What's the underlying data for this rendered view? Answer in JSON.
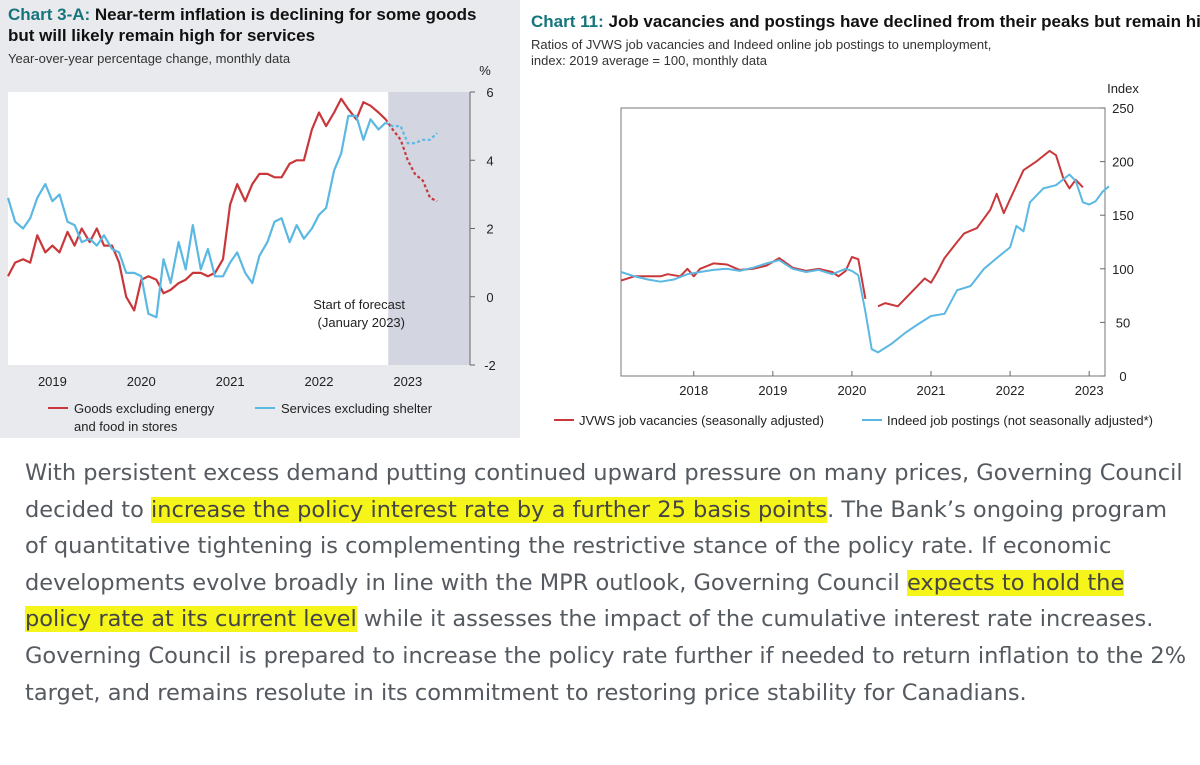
{
  "chart_data": [
    {
      "type": "line",
      "title_number": "Chart 3-A:",
      "title": "Near-term inflation is declining for some goods but will likely remain high for services",
      "subtitle": "Year-over-year percentage change, monthly data",
      "y_unit": "%",
      "ylim": [
        -2,
        6
      ],
      "y_ticks": [
        -2,
        0,
        2,
        4,
        6
      ],
      "xlim": [
        2018.5,
        2023.7
      ],
      "x_ticks": [
        {
          "label": "2019",
          "x": 2019.0
        },
        {
          "label": "2020",
          "x": 2020.0
        },
        {
          "label": "2021",
          "x": 2021.0
        },
        {
          "label": "2022",
          "x": 2022.0
        },
        {
          "label": "2023",
          "x": 2023.0
        }
      ],
      "forecast_start": 2022.78,
      "annotation": [
        "Start of forecast",
        "(January 2023)"
      ],
      "series": [
        {
          "name": "Goods excluding energy and food in stores",
          "legend_lines": [
            "Goods excluding energy",
            "and food in stores"
          ],
          "color": "#c8383b",
          "points": [
            [
              2018.5,
              0.6
            ],
            [
              2018.58,
              1.0
            ],
            [
              2018.67,
              1.1
            ],
            [
              2018.75,
              1.0
            ],
            [
              2018.83,
              1.8
            ],
            [
              2018.92,
              1.3
            ],
            [
              2019.0,
              1.5
            ],
            [
              2019.08,
              1.3
            ],
            [
              2019.17,
              1.9
            ],
            [
              2019.25,
              1.5
            ],
            [
              2019.33,
              2.0
            ],
            [
              2019.42,
              1.6
            ],
            [
              2019.5,
              2.0
            ],
            [
              2019.58,
              1.5
            ],
            [
              2019.67,
              1.5
            ],
            [
              2019.75,
              1.0
            ],
            [
              2019.83,
              0.0
            ],
            [
              2019.92,
              -0.4
            ],
            [
              2020.0,
              0.5
            ],
            [
              2020.08,
              0.6
            ],
            [
              2020.17,
              0.5
            ],
            [
              2020.25,
              0.1
            ],
            [
              2020.33,
              0.2
            ],
            [
              2020.42,
              0.4
            ],
            [
              2020.5,
              0.5
            ],
            [
              2020.58,
              0.7
            ],
            [
              2020.67,
              0.7
            ],
            [
              2020.75,
              0.6
            ],
            [
              2020.83,
              0.7
            ],
            [
              2020.92,
              1.1
            ],
            [
              2021.0,
              2.7
            ],
            [
              2021.08,
              3.3
            ],
            [
              2021.17,
              2.8
            ],
            [
              2021.25,
              3.3
            ],
            [
              2021.33,
              3.6
            ],
            [
              2021.42,
              3.6
            ],
            [
              2021.5,
              3.5
            ],
            [
              2021.58,
              3.5
            ],
            [
              2021.67,
              3.9
            ],
            [
              2021.75,
              4.0
            ],
            [
              2021.83,
              4.0
            ],
            [
              2021.92,
              4.9
            ],
            [
              2022.0,
              5.4
            ],
            [
              2022.08,
              5.0
            ],
            [
              2022.17,
              5.4
            ],
            [
              2022.25,
              5.8
            ],
            [
              2022.33,
              5.5
            ],
            [
              2022.42,
              5.2
            ],
            [
              2022.5,
              5.7
            ],
            [
              2022.58,
              5.6
            ],
            [
              2022.67,
              5.4
            ],
            [
              2022.75,
              5.2
            ]
          ],
          "forecast_points": [
            [
              2022.75,
              5.2
            ],
            [
              2022.83,
              4.9
            ],
            [
              2022.92,
              4.6
            ],
            [
              2023.0,
              4.0
            ],
            [
              2023.08,
              3.6
            ],
            [
              2023.17,
              3.4
            ],
            [
              2023.25,
              2.9
            ],
            [
              2023.33,
              2.8
            ]
          ]
        },
        {
          "name": "Services excluding shelter",
          "legend_lines": [
            "Services excluding shelter"
          ],
          "color": "#5bb8e3",
          "points": [
            [
              2018.5,
              2.9
            ],
            [
              2018.58,
              2.2
            ],
            [
              2018.67,
              2.0
            ],
            [
              2018.75,
              2.3
            ],
            [
              2018.83,
              2.9
            ],
            [
              2018.92,
              3.3
            ],
            [
              2019.0,
              2.8
            ],
            [
              2019.08,
              3.0
            ],
            [
              2019.17,
              2.2
            ],
            [
              2019.25,
              2.1
            ],
            [
              2019.33,
              1.6
            ],
            [
              2019.42,
              1.7
            ],
            [
              2019.5,
              1.5
            ],
            [
              2019.58,
              1.8
            ],
            [
              2019.67,
              1.4
            ],
            [
              2019.75,
              1.3
            ],
            [
              2019.83,
              0.7
            ],
            [
              2019.92,
              0.7
            ],
            [
              2020.0,
              0.6
            ],
            [
              2020.08,
              -0.5
            ],
            [
              2020.17,
              -0.6
            ],
            [
              2020.25,
              1.1
            ],
            [
              2020.33,
              0.4
            ],
            [
              2020.42,
              1.6
            ],
            [
              2020.5,
              0.8
            ],
            [
              2020.58,
              2.1
            ],
            [
              2020.67,
              0.8
            ],
            [
              2020.75,
              1.4
            ],
            [
              2020.83,
              0.6
            ],
            [
              2020.92,
              0.6
            ],
            [
              2021.0,
              1.0
            ],
            [
              2021.08,
              1.3
            ],
            [
              2021.17,
              0.7
            ],
            [
              2021.25,
              0.4
            ],
            [
              2021.33,
              1.2
            ],
            [
              2021.42,
              1.6
            ],
            [
              2021.5,
              2.2
            ],
            [
              2021.58,
              2.3
            ],
            [
              2021.67,
              1.6
            ],
            [
              2021.75,
              2.1
            ],
            [
              2021.83,
              1.7
            ],
            [
              2021.92,
              2.0
            ],
            [
              2022.0,
              2.4
            ],
            [
              2022.08,
              2.6
            ],
            [
              2022.17,
              3.7
            ],
            [
              2022.25,
              4.2
            ],
            [
              2022.33,
              5.3
            ],
            [
              2022.42,
              5.3
            ],
            [
              2022.5,
              4.6
            ],
            [
              2022.58,
              5.2
            ],
            [
              2022.67,
              4.9
            ],
            [
              2022.75,
              5.1
            ]
          ],
          "forecast_points": [
            [
              2022.75,
              5.1
            ],
            [
              2022.83,
              5.0
            ],
            [
              2022.92,
              5.0
            ],
            [
              2023.0,
              4.5
            ],
            [
              2023.08,
              4.5
            ],
            [
              2023.17,
              4.6
            ],
            [
              2023.25,
              4.6
            ],
            [
              2023.33,
              4.8
            ]
          ]
        }
      ]
    },
    {
      "type": "line",
      "title_number": "Chart 11:",
      "title": "Job vacancies and postings have declined from their peaks but remain high",
      "subtitle_lines": [
        "Ratios of JVWS job vacancies and Indeed online job postings to unemployment,",
        "index: 2019 average = 100, monthly data"
      ],
      "y_unit": "Index",
      "ylim": [
        0,
        250
      ],
      "y_ticks": [
        0,
        50,
        100,
        150,
        200,
        250
      ],
      "xlim": [
        2017.08,
        2023.2
      ],
      "x_ticks": [
        {
          "label": "2018",
          "x": 2018.0
        },
        {
          "label": "2019",
          "x": 2019.0
        },
        {
          "label": "2020",
          "x": 2020.0
        },
        {
          "label": "2021",
          "x": 2021.0
        },
        {
          "label": "2022",
          "x": 2022.0
        },
        {
          "label": "2023",
          "x": 2023.0
        }
      ],
      "series": [
        {
          "name": "JVWS job vacancies (seasonally adjusted)",
          "color": "#c8383b",
          "segments": [
            [
              [
                2017.08,
                89
              ],
              [
                2017.25,
                93
              ],
              [
                2017.42,
                93
              ],
              [
                2017.58,
                93
              ],
              [
                2017.67,
                95
              ],
              [
                2017.83,
                93
              ],
              [
                2017.92,
                100
              ],
              [
                2018.0,
                93
              ],
              [
                2018.08,
                100
              ],
              [
                2018.25,
                105
              ],
              [
                2018.42,
                104
              ],
              [
                2018.58,
                99
              ],
              [
                2018.75,
                100
              ],
              [
                2018.92,
                103
              ],
              [
                2019.08,
                110
              ],
              [
                2019.25,
                101
              ],
              [
                2019.42,
                98
              ],
              [
                2019.58,
                100
              ],
              [
                2019.75,
                97
              ],
              [
                2019.83,
                93
              ],
              [
                2019.92,
                98
              ],
              [
                2020.0,
                111
              ],
              [
                2020.08,
                109
              ],
              [
                2020.17,
                72
              ]
            ],
            [
              [
                2020.33,
                65
              ],
              [
                2020.42,
                68
              ],
              [
                2020.58,
                65
              ],
              [
                2020.75,
                78
              ],
              [
                2020.92,
                91
              ],
              [
                2021.0,
                87
              ],
              [
                2021.08,
                97
              ],
              [
                2021.17,
                110
              ],
              [
                2021.33,
                125
              ],
              [
                2021.42,
                133
              ],
              [
                2021.58,
                138
              ],
              [
                2021.75,
                155
              ],
              [
                2021.83,
                170
              ],
              [
                2021.92,
                152
              ],
              [
                2022.0,
                165
              ],
              [
                2022.17,
                192
              ],
              [
                2022.33,
                200
              ],
              [
                2022.5,
                210
              ],
              [
                2022.58,
                206
              ],
              [
                2022.67,
                185
              ],
              [
                2022.75,
                175
              ],
              [
                2022.83,
                183
              ],
              [
                2022.92,
                176
              ]
            ]
          ]
        },
        {
          "name": "Indeed job postings (not seasonally adjusted*)",
          "color": "#5bb8e3",
          "segments": [
            [
              [
                2017.08,
                97
              ],
              [
                2017.25,
                93
              ],
              [
                2017.42,
                90
              ],
              [
                2017.58,
                88
              ],
              [
                2017.75,
                90
              ],
              [
                2017.92,
                95
              ],
              [
                2018.08,
                97
              ],
              [
                2018.25,
                99
              ],
              [
                2018.42,
                100
              ],
              [
                2018.58,
                98
              ],
              [
                2018.75,
                101
              ],
              [
                2018.92,
                105
              ],
              [
                2019.08,
                108
              ],
              [
                2019.25,
                100
              ],
              [
                2019.42,
                97
              ],
              [
                2019.58,
                99
              ],
              [
                2019.75,
                95
              ],
              [
                2019.92,
                100
              ],
              [
                2020.0,
                98
              ],
              [
                2020.08,
                94
              ],
              [
                2020.17,
                60
              ],
              [
                2020.25,
                25
              ],
              [
                2020.33,
                22
              ],
              [
                2020.5,
                30
              ],
              [
                2020.67,
                40
              ],
              [
                2020.83,
                48
              ],
              [
                2021.0,
                56
              ],
              [
                2021.17,
                58
              ],
              [
                2021.33,
                80
              ],
              [
                2021.5,
                84
              ],
              [
                2021.67,
                100
              ],
              [
                2021.83,
                110
              ],
              [
                2022.0,
                120
              ],
              [
                2022.08,
                140
              ],
              [
                2022.17,
                135
              ],
              [
                2022.25,
                162
              ],
              [
                2022.42,
                175
              ],
              [
                2022.58,
                178
              ],
              [
                2022.75,
                188
              ],
              [
                2022.83,
                182
              ],
              [
                2022.92,
                162
              ],
              [
                2023.0,
                160
              ],
              [
                2023.08,
                163
              ],
              [
                2023.17,
                172
              ],
              [
                2023.25,
                177
              ]
            ]
          ]
        }
      ],
      "legend": [
        {
          "label": "JVWS job vacancies (seasonally adjusted)",
          "color": "#c8383b"
        },
        {
          "label": "Indeed job postings (not seasonally adjusted",
          "suffix": "*)",
          "color": "#5bb8e3"
        }
      ]
    }
  ],
  "body_text": {
    "s1": "With persistent excess demand putting continued upward pressure on many prices, Governing Council decided to ",
    "h1": "increase the policy interest rate by a further 25 basis points",
    "s2": ". The Bank’s ongoing program of quantitative tightening is complementing the restrictive stance of the policy rate. If economic developments evolve broadly in line with the MPR outlook, Governing Council ",
    "h2": "expects to hold the policy rate at its current level",
    "s3": " while it assesses the impact of the cumulative interest rate increases. Governing Council is prepared to increase the policy rate further if needed to return inflation to the 2% target, and remains resolute in its commitment to restoring price stability for Canadians."
  },
  "colors": {
    "highlight": "#f6f51a",
    "forecast_shade": "#d3d6e1",
    "accent": "#15757c"
  }
}
